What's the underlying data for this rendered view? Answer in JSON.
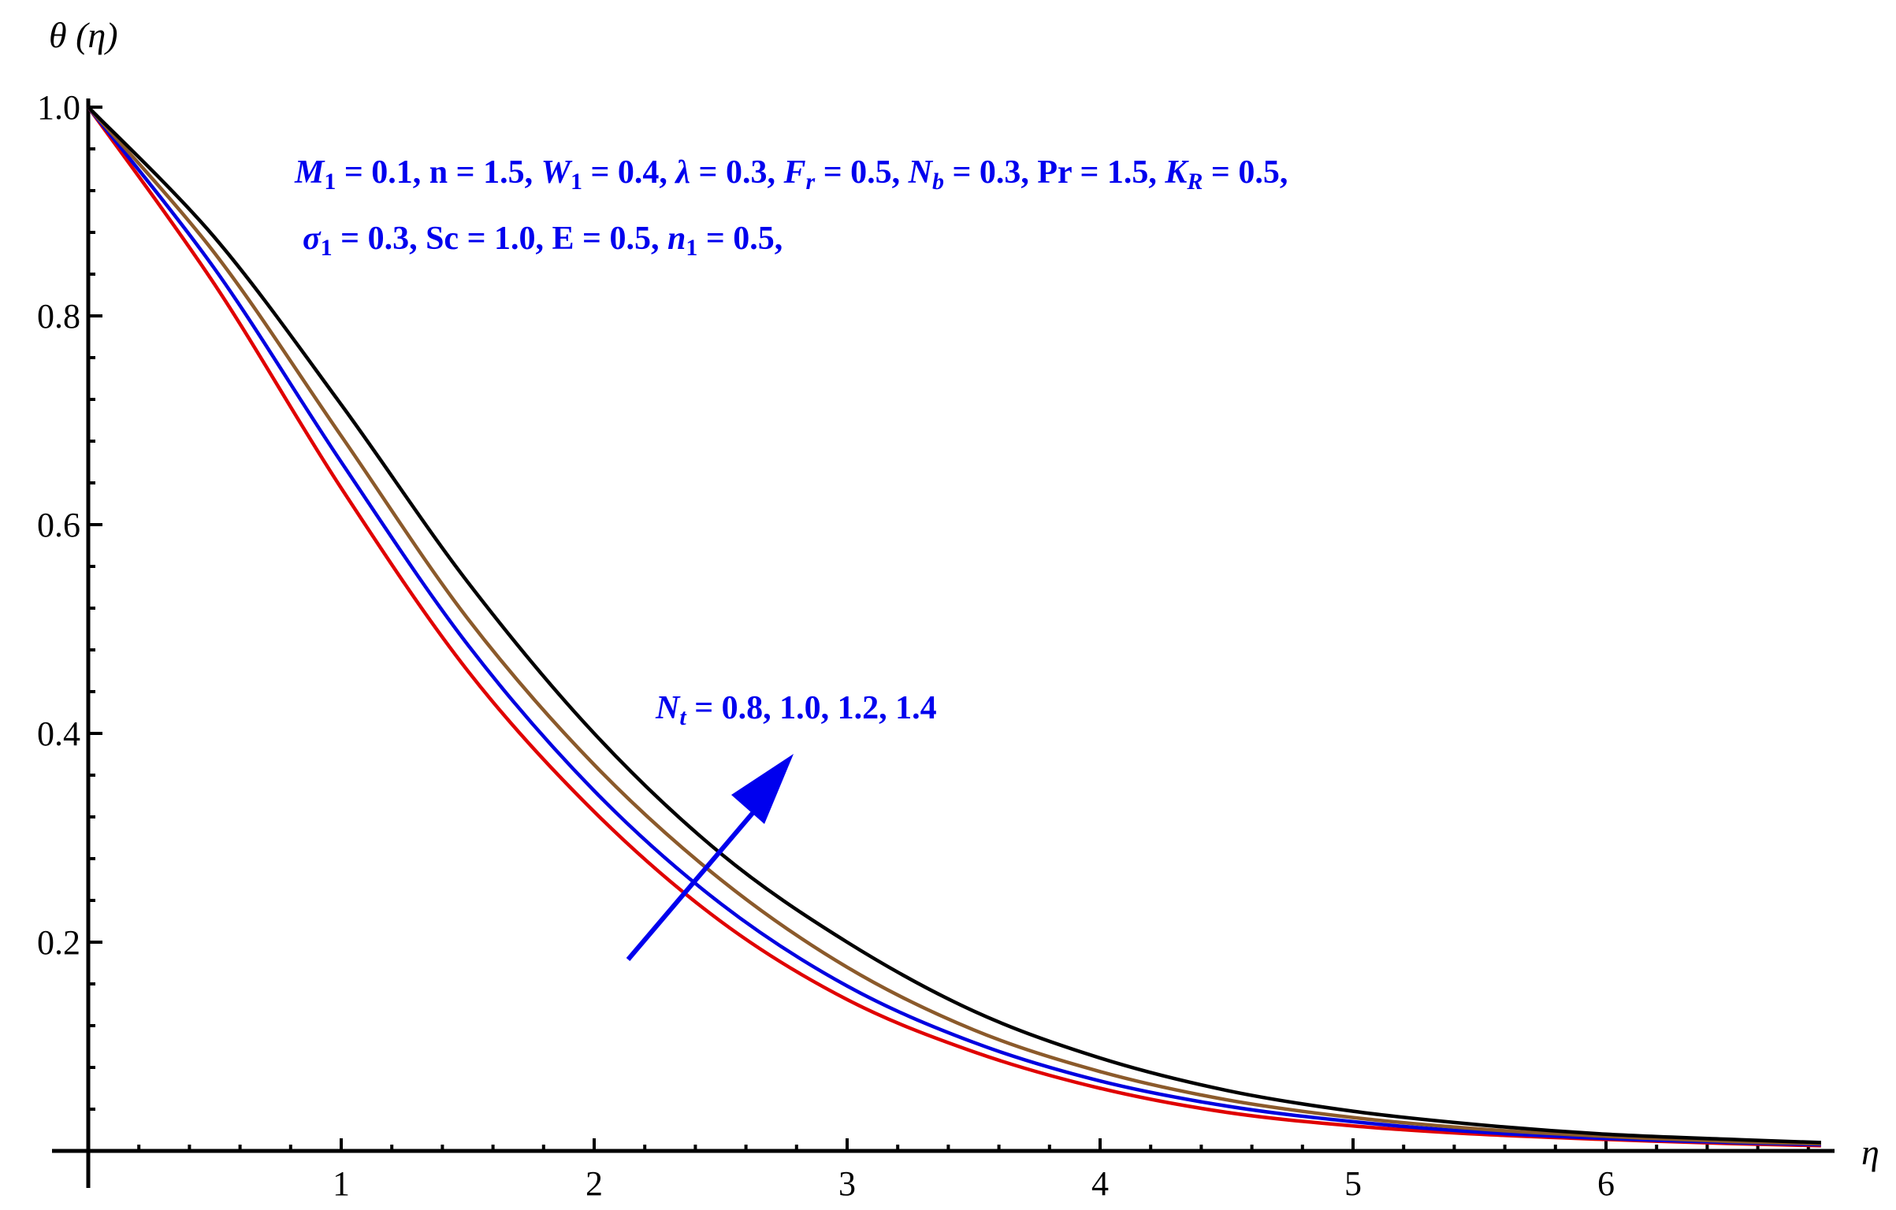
{
  "chart_data": {
    "type": "line",
    "title": "",
    "xlabel": "η",
    "ylabel": "θ (η)",
    "xlim": [
      0,
      6.85
    ],
    "ylim": [
      0,
      1.0
    ],
    "x_ticks": [
      "1",
      "2",
      "3",
      "4",
      "5",
      "6"
    ],
    "y_ticks": [
      "0.2",
      "0.4",
      "0.6",
      "0.8",
      "1.0"
    ],
    "grid": false,
    "x": [
      0,
      0.5,
      1,
      1.5,
      2,
      2.5,
      3,
      3.5,
      4,
      4.5,
      5,
      5.5,
      6,
      6.5,
      6.85
    ],
    "series": [
      {
        "color": "#e00000",
        "values": [
          1.0,
          0.83,
          0.635,
          0.46,
          0.325,
          0.22,
          0.145,
          0.095,
          0.06,
          0.037,
          0.024,
          0.016,
          0.011,
          0.007,
          0.005
        ]
      },
      {
        "color": "#0000e0",
        "values": [
          1.0,
          0.845,
          0.66,
          0.485,
          0.345,
          0.237,
          0.158,
          0.104,
          0.067,
          0.043,
          0.028,
          0.018,
          0.012,
          0.008,
          0.006
        ]
      },
      {
        "color": "#8b5a2b",
        "values": [
          1.0,
          0.86,
          0.685,
          0.51,
          0.37,
          0.26,
          0.176,
          0.116,
          0.076,
          0.049,
          0.032,
          0.021,
          0.014,
          0.009,
          0.007
        ]
      },
      {
        "color": "#000000",
        "values": [
          1.0,
          0.875,
          0.715,
          0.545,
          0.4,
          0.285,
          0.2,
          0.134,
          0.089,
          0.058,
          0.038,
          0.025,
          0.016,
          0.011,
          0.008
        ]
      }
    ],
    "annotations": {
      "params_line1": {
        "m1_sym": "M",
        "m1_sub": "1",
        "m1_val": " =  0.1, ",
        "n_text": "n = 1.5, ",
        "w1_sym": "W",
        "w1_sub": "1",
        "w1_val": " =  0.4,  ",
        "lambda_sym": "λ",
        "lambda_val": " = 0.3, ",
        "fr_sym": "F",
        "fr_sub": "r",
        "fr_val": " = 0.5, ",
        "nb_sym": "N",
        "nb_sub": "b",
        "nb_val": " = 0.3, ",
        "pr_text": "Pr = 1.5, ",
        "kr_sym": "K",
        "kr_sub": "R",
        "kr_val": " = 0.5,"
      },
      "params_line2": {
        "sigma_sym": "σ",
        "sigma_sub": "1",
        "sigma_val": " = 0.3,  ",
        "sc_text": "Sc = 1.0,  ",
        "e_text": "E = 0.5, ",
        "n1_sym": "n",
        "n1_sub": "1",
        "n1_val": " = 0.5,"
      },
      "nt_label": {
        "sym": "N",
        "sub": "t",
        "val": " = 0.8, 1.0, 1.2, 1.4"
      },
      "arrow_color": "#0000ee"
    }
  }
}
